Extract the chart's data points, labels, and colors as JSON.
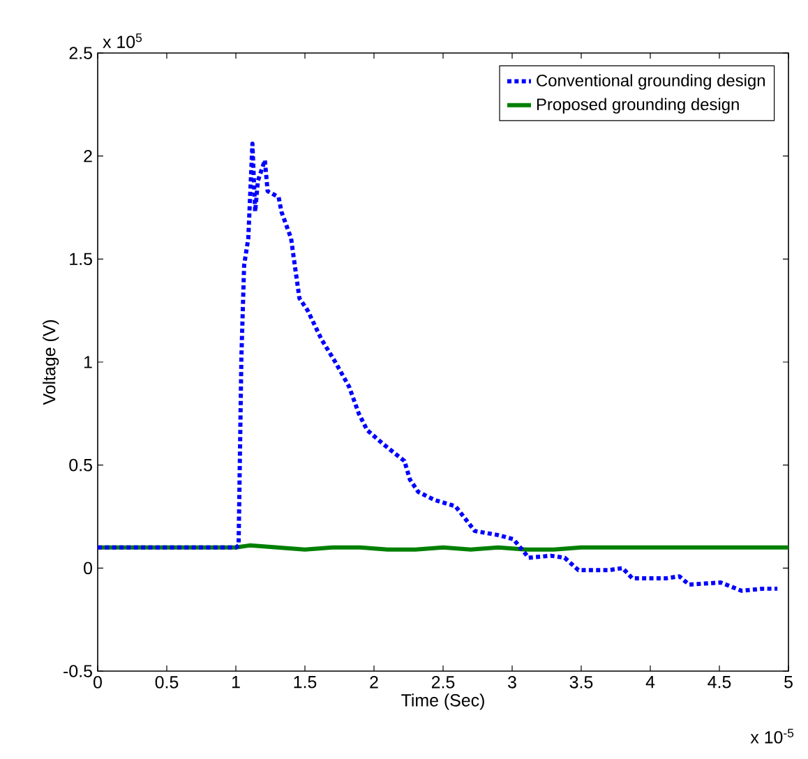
{
  "chart_data": {
    "type": "line",
    "xlabel": "Time (Sec)",
    "ylabel": "Voltage (V)",
    "annotations": [
      "x 10$^{5}$",
      "x 10$^{-5}$"
    ],
    "xlim": [
      0,
      5
    ],
    "ylim": [
      -0.5,
      2.5
    ],
    "xticks": [
      0,
      0.5,
      1,
      1.5,
      2,
      2.5,
      3,
      3.5,
      4,
      4.5,
      5
    ],
    "yticks": [
      -0.5,
      0,
      0.5,
      1,
      1.5,
      2,
      2.5
    ],
    "legend": "top right",
    "grid": false,
    "marker": "none",
    "series": [
      {
        "name": "Conventional grounding design",
        "color": "#0000ff",
        "line_style": "dotted",
        "x": [
          0,
          0.5,
          1.0,
          1.02,
          1.04,
          1.06,
          1.09,
          1.12,
          1.14,
          1.16,
          1.21,
          1.23,
          1.31,
          1.33,
          1.4,
          1.41,
          1.46,
          1.52,
          1.62,
          1.72,
          1.82,
          1.89,
          1.95,
          2.07,
          2.22,
          2.26,
          2.32,
          2.44,
          2.59,
          2.73,
          2.9,
          3.01,
          3.12,
          3.28,
          3.38,
          3.48,
          3.7,
          3.8,
          3.87,
          4.11,
          4.21,
          4.28,
          4.51,
          4.66,
          4.82,
          4.92
        ],
        "values": [
          0.1,
          0.1,
          0.1,
          0.11,
          1.02,
          1.47,
          1.6,
          2.06,
          1.73,
          1.88,
          1.98,
          1.83,
          1.8,
          1.73,
          1.6,
          1.55,
          1.31,
          1.25,
          1.11,
          1.0,
          0.88,
          0.75,
          0.67,
          0.6,
          0.52,
          0.43,
          0.37,
          0.33,
          0.3,
          0.18,
          0.16,
          0.14,
          0.05,
          0.06,
          0.05,
          -0.01,
          -0.01,
          0.0,
          -0.05,
          -0.05,
          -0.04,
          -0.08,
          -0.07,
          -0.11,
          -0.1,
          -0.1
        ]
      },
      {
        "name": "Proposed grounding design",
        "color": "#008000",
        "line_style": "solid",
        "x": [
          0,
          0.5,
          1.0,
          1.1,
          1.3,
          1.5,
          1.7,
          1.9,
          2.1,
          2.3,
          2.5,
          2.7,
          2.9,
          3.1,
          3.3,
          3.5,
          4.0,
          4.5,
          5.0
        ],
        "values": [
          0.1,
          0.1,
          0.1,
          0.11,
          0.1,
          0.09,
          0.1,
          0.1,
          0.09,
          0.09,
          0.1,
          0.09,
          0.1,
          0.09,
          0.09,
          0.1,
          0.1,
          0.1,
          0.1
        ]
      }
    ]
  }
}
